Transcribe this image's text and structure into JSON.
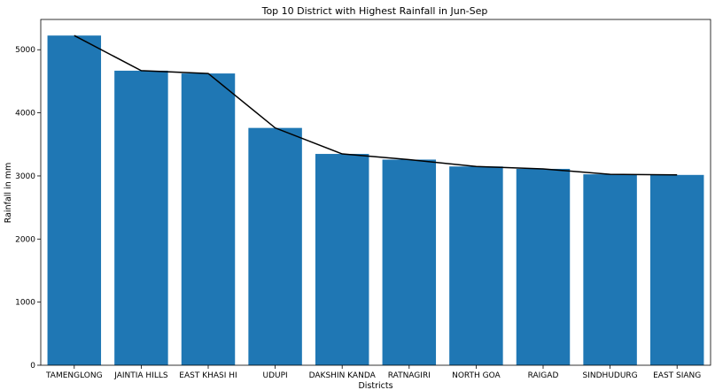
{
  "chart_data": {
    "type": "bar",
    "title": "Top 10 District with Highest Rainfall in Jun-Sep",
    "xlabel": "Districts",
    "ylabel": "Rainfall in mm",
    "categories": [
      "TAMENGLONG",
      "JAINTIA HILLS",
      "EAST KHASI HI",
      "UDUPI",
      "DAKSHIN KANDA",
      "RATNAGIRI",
      "NORTH GOA",
      "RAIGAD",
      "SINDHUDURG",
      "EAST SIANG"
    ],
    "values": [
      5225,
      4668,
      4624,
      3761,
      3349,
      3259,
      3150,
      3112,
      3026,
      3016
    ],
    "overlay_line": true,
    "ylim": [
      0,
      5480
    ],
    "yticks": [
      0,
      1000,
      2000,
      3000,
      4000,
      5000
    ],
    "grid": false,
    "legend": "none",
    "colors": {
      "bar": "#1f77b4",
      "line": "#000000",
      "axis": "#000000"
    }
  }
}
